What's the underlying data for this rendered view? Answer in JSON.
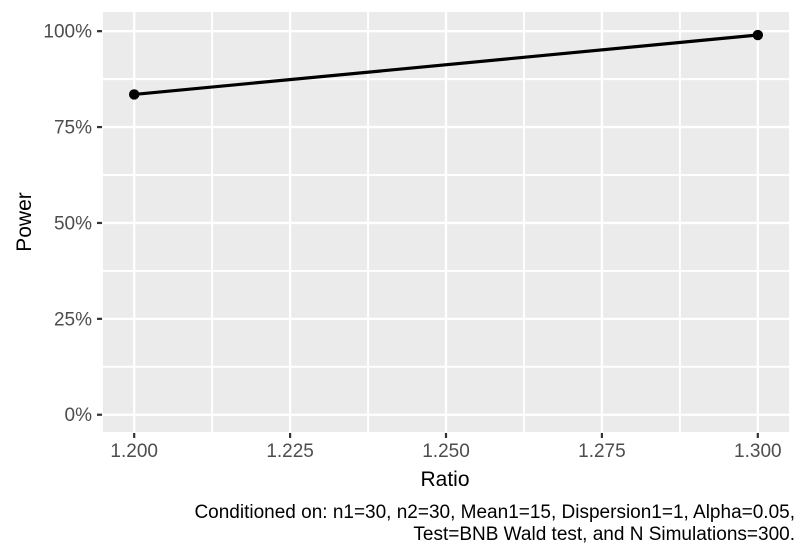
{
  "chart_data": {
    "type": "line",
    "title": "",
    "xlabel": "Ratio",
    "ylabel": "Power",
    "x": [
      1.2,
      1.3
    ],
    "series": [
      {
        "name": "Power",
        "y_percent": [
          83.5,
          99.0
        ]
      }
    ],
    "x_ticks": {
      "values": [
        1.2,
        1.225,
        1.25,
        1.275,
        1.3
      ],
      "labels": [
        "1.200",
        "1.225",
        "1.250",
        "1.275",
        "1.300"
      ]
    },
    "y_ticks": {
      "values": [
        0,
        25,
        50,
        75,
        100
      ],
      "labels": [
        "0%",
        "25%",
        "50%",
        "75%",
        "100%"
      ]
    },
    "x_minor_ticks": [
      1.2125,
      1.2375,
      1.2625,
      1.2875
    ],
    "y_minor_ticks": [
      12.5,
      37.5,
      62.5,
      87.5
    ],
    "xlim": [
      1.195,
      1.305
    ],
    "ylim_percent": [
      -4.5,
      105
    ],
    "grid": "major and minor white gridlines on grey panel",
    "legend": "none",
    "caption": {
      "line1": "Conditioned on: n1=30, n2=30, Mean1=15, Dispersion1=1, Alpha=0.05,",
      "line2": "Test=BNB Wald test, and N Simulations=300."
    },
    "colors": {
      "page_background": "#FFFFFF",
      "panel_background": "#EBEBEB",
      "gridline": "#FFFFFF",
      "series_line": "#000000",
      "data_point": "#000000",
      "tick_mark": "#333333",
      "tick_label": "#4D4D4D",
      "axis_title": "#000000",
      "caption_text": "#000000"
    }
  }
}
